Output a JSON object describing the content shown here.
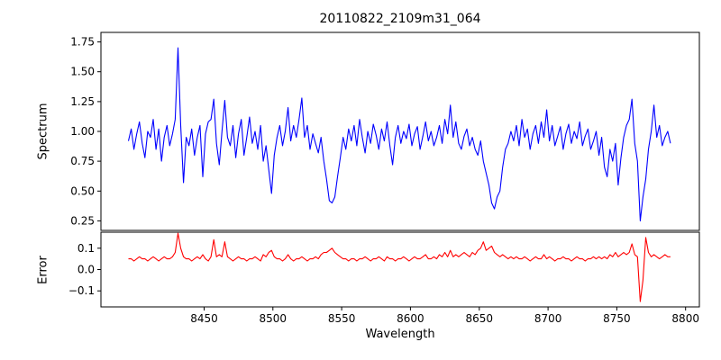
{
  "chart_data": {
    "type": "line",
    "title": "20110822_2109m31_064",
    "xlabel": "Wavelength",
    "grid": false,
    "legend": "none",
    "x_start": 8395,
    "x_step": 2,
    "xlim": [
      8375,
      8810
    ],
    "xticks": [
      8450,
      8500,
      8550,
      8600,
      8650,
      8700,
      8750,
      8800
    ],
    "panels": [
      {
        "name": "spectrum",
        "ylabel": "Spectrum",
        "color": "#0000ff",
        "ylim": [
          0.17,
          1.83
        ],
        "yticks": [
          0.25,
          0.5,
          0.75,
          1.0,
          1.25,
          1.5,
          1.75
        ],
        "ytick_labels": [
          "0.25",
          "0.50",
          "0.75",
          "1.00",
          "1.25",
          "1.50",
          "1.75"
        ],
        "values": [
          0.92,
          1.02,
          0.85,
          0.98,
          1.08,
          0.9,
          0.78,
          1.0,
          0.95,
          1.1,
          0.85,
          1.02,
          0.75,
          0.95,
          1.05,
          0.88,
          0.98,
          1.1,
          1.7,
          1.05,
          0.57,
          0.95,
          0.88,
          1.02,
          0.8,
          0.95,
          1.05,
          0.62,
          0.98,
          1.08,
          1.1,
          1.27,
          0.9,
          0.72,
          1.0,
          1.26,
          0.95,
          0.88,
          1.05,
          0.78,
          0.98,
          1.1,
          0.8,
          0.95,
          1.12,
          0.9,
          1.0,
          0.85,
          1.05,
          0.75,
          0.88,
          0.68,
          0.48,
          0.8,
          0.95,
          1.05,
          0.88,
          1.0,
          1.2,
          0.92,
          1.05,
          0.95,
          1.1,
          1.28,
          0.95,
          1.05,
          0.85,
          0.98,
          0.9,
          0.82,
          0.95,
          0.75,
          0.6,
          0.42,
          0.4,
          0.45,
          0.62,
          0.78,
          0.95,
          0.85,
          1.02,
          0.92,
          1.05,
          0.88,
          1.1,
          0.95,
          0.82,
          1.0,
          0.9,
          1.06,
          0.97,
          0.85,
          1.02,
          0.92,
          1.08,
          0.88,
          0.72,
          0.95,
          1.05,
          0.9,
          1.0,
          0.94,
          1.06,
          0.88,
          0.98,
          1.04,
          0.85,
          0.96,
          1.08,
          0.92,
          1.0,
          0.88,
          0.95,
          1.05,
          0.9,
          1.1,
          0.98,
          1.22,
          0.95,
          1.08,
          0.9,
          0.85,
          0.96,
          1.02,
          0.88,
          0.95,
          0.85,
          0.8,
          0.92,
          0.75,
          0.65,
          0.55,
          0.4,
          0.35,
          0.45,
          0.5,
          0.7,
          0.85,
          0.9,
          1.0,
          0.92,
          1.05,
          0.88,
          1.1,
          0.95,
          1.02,
          0.85,
          0.98,
          1.05,
          0.9,
          1.08,
          0.95,
          1.18,
          0.92,
          1.05,
          0.88,
          0.96,
          1.04,
          0.85,
          0.98,
          1.06,
          0.9,
          1.0,
          0.94,
          1.08,
          0.88,
          0.96,
          1.02,
          0.85,
          0.92,
          1.0,
          0.8,
          0.95,
          0.7,
          0.62,
          0.85,
          0.75,
          0.9,
          0.55,
          0.78,
          0.95,
          1.05,
          1.1,
          1.27,
          0.9,
          0.75,
          0.25,
          0.45,
          0.6,
          0.85,
          1.0,
          1.22,
          0.95,
          1.05,
          0.88,
          0.95,
          1.0,
          0.9
        ]
      },
      {
        "name": "error",
        "ylabel": "Error",
        "color": "#ff0000",
        "ylim": [
          -0.175,
          0.175
        ],
        "yticks": [
          -0.1,
          0.0,
          0.1
        ],
        "ytick_labels": [
          "−0.1",
          "0.0",
          "0.1"
        ],
        "values": [
          0.05,
          0.05,
          0.04,
          0.05,
          0.06,
          0.05,
          0.05,
          0.04,
          0.05,
          0.06,
          0.05,
          0.04,
          0.05,
          0.06,
          0.05,
          0.05,
          0.06,
          0.08,
          0.17,
          0.1,
          0.06,
          0.05,
          0.05,
          0.04,
          0.05,
          0.06,
          0.05,
          0.07,
          0.05,
          0.04,
          0.06,
          0.14,
          0.06,
          0.07,
          0.06,
          0.13,
          0.06,
          0.05,
          0.04,
          0.05,
          0.06,
          0.05,
          0.05,
          0.04,
          0.05,
          0.05,
          0.06,
          0.05,
          0.04,
          0.07,
          0.06,
          0.08,
          0.09,
          0.06,
          0.05,
          0.05,
          0.04,
          0.05,
          0.07,
          0.05,
          0.04,
          0.05,
          0.05,
          0.06,
          0.05,
          0.04,
          0.05,
          0.05,
          0.06,
          0.05,
          0.07,
          0.08,
          0.08,
          0.09,
          0.1,
          0.08,
          0.07,
          0.06,
          0.05,
          0.05,
          0.04,
          0.05,
          0.05,
          0.04,
          0.05,
          0.05,
          0.06,
          0.05,
          0.04,
          0.05,
          0.05,
          0.06,
          0.05,
          0.04,
          0.06,
          0.05,
          0.05,
          0.04,
          0.05,
          0.05,
          0.06,
          0.05,
          0.04,
          0.05,
          0.06,
          0.05,
          0.05,
          0.06,
          0.07,
          0.05,
          0.05,
          0.06,
          0.05,
          0.07,
          0.06,
          0.08,
          0.06,
          0.09,
          0.06,
          0.07,
          0.06,
          0.07,
          0.08,
          0.07,
          0.06,
          0.08,
          0.07,
          0.09,
          0.1,
          0.13,
          0.09,
          0.1,
          0.11,
          0.08,
          0.07,
          0.06,
          0.07,
          0.06,
          0.05,
          0.06,
          0.05,
          0.06,
          0.05,
          0.05,
          0.06,
          0.05,
          0.04,
          0.05,
          0.06,
          0.05,
          0.05,
          0.07,
          0.05,
          0.06,
          0.05,
          0.04,
          0.05,
          0.05,
          0.06,
          0.05,
          0.05,
          0.04,
          0.05,
          0.06,
          0.05,
          0.05,
          0.04,
          0.05,
          0.05,
          0.06,
          0.05,
          0.06,
          0.05,
          0.06,
          0.05,
          0.07,
          0.06,
          0.08,
          0.06,
          0.07,
          0.08,
          0.07,
          0.08,
          0.12,
          0.07,
          0.06,
          -0.15,
          -0.05,
          0.15,
          0.08,
          0.06,
          0.07,
          0.06,
          0.05,
          0.06,
          0.07,
          0.06,
          0.06
        ]
      }
    ]
  }
}
